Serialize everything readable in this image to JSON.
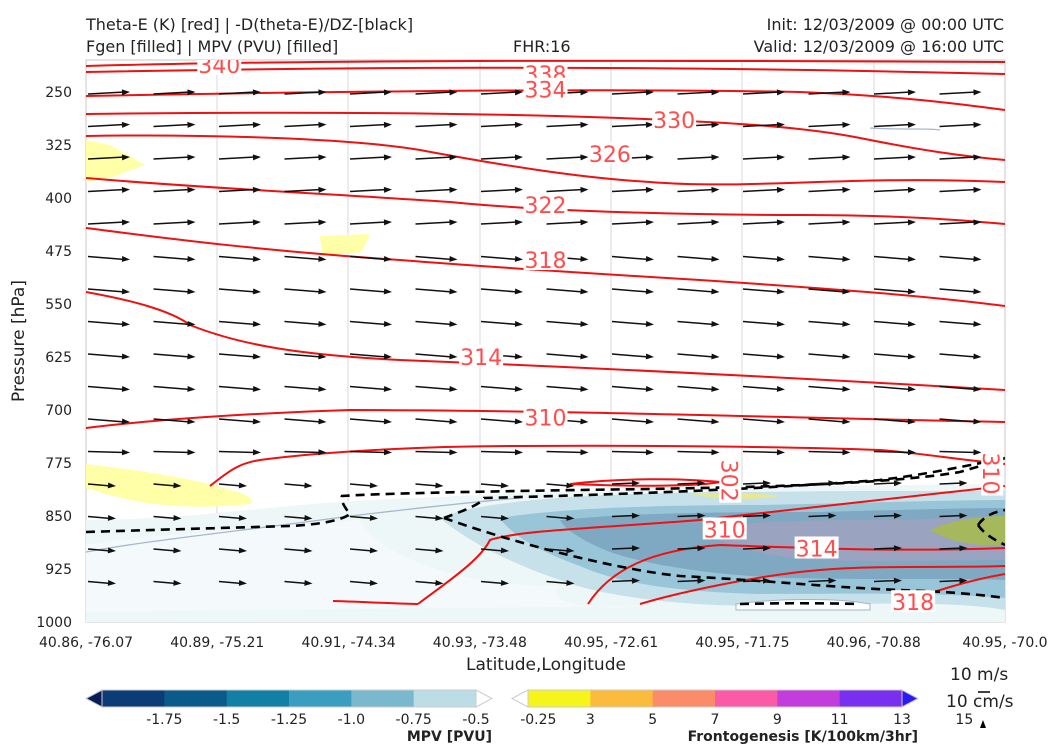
{
  "header": {
    "title_line1": "Theta-E (K) [red] | -D(theta-E)/DZ-[black]",
    "title_line2": "Fgen [filled] | MPV (PVU) [filled]",
    "fhr": "FHR:16",
    "init": "Init: 12/03/2009 @ 00:00 UTC",
    "valid": "Valid: 12/03/2009 @ 16:00 UTC"
  },
  "chart_data": {
    "type": "cross-section",
    "xlabel": "Latitude,Longitude",
    "ylabel": "Pressure [hPa]",
    "x_ticks": [
      "40.86, -76.07",
      "40.89, -75.21",
      "40.91, -74.34",
      "40.93, -73.48",
      "40.95, -72.61",
      "40.95, -71.75",
      "40.96, -70.88",
      "40.95, -70.0"
    ],
    "y_ticks": [
      250,
      325,
      400,
      475,
      550,
      625,
      700,
      775,
      850,
      925,
      1000
    ],
    "ylim": [
      1000,
      205
    ],
    "y_scale": "linear-inverted",
    "theta_e_contours": [
      {
        "level": "340",
        "label_x": 0.145,
        "label_p": 212
      },
      {
        "level": "338",
        "label_x": 0.5,
        "label_p": 225
      },
      {
        "level": "334",
        "label_x": 0.5,
        "label_p": 247
      },
      {
        "level": "330",
        "label_x": 0.64,
        "label_p": 290
      },
      {
        "level": "326",
        "label_x": 0.57,
        "label_p": 338
      },
      {
        "level": "322",
        "label_x": 0.5,
        "label_p": 410
      },
      {
        "level": "318",
        "label_x": 0.5,
        "label_p": 488
      },
      {
        "level": "314",
        "label_x": 0.43,
        "label_p": 625
      },
      {
        "level": "310",
        "label_x": 0.5,
        "label_p": 711
      },
      {
        "level": "302",
        "label_x": 0.7,
        "label_p": 800
      },
      {
        "level": "310",
        "label_x": 0.695,
        "label_p": 869
      },
      {
        "level": "314",
        "label_x": 0.795,
        "label_p": 896
      },
      {
        "level": "318",
        "label_x": 0.9,
        "label_p": 972
      },
      {
        "level": "310",
        "label_x": 0.985,
        "label_p": 790
      }
    ],
    "colorbar_mpv": {
      "label": "MPV [PVU]",
      "ticks": [
        "-1.75",
        "-1.5",
        "-1.25",
        "-1.0",
        "-0.75",
        "-0.5",
        "-0.25"
      ],
      "colors": [
        "#081d58",
        "#0c3c78",
        "#0a5a8c",
        "#127fa6",
        "#3a9ec0",
        "#7ab8d0",
        "#bcdde6",
        "#ffffff"
      ]
    },
    "colorbar_fgen": {
      "label": "Frontogenesis [K/100km/3hr]",
      "ticks": [
        "3",
        "5",
        "7",
        "9",
        "11",
        "13",
        "15"
      ],
      "colors": [
        "#ffffff",
        "#f5f51a",
        "#fbbc3d",
        "#fb8c6a",
        "#fb5aa7",
        "#c33ddc",
        "#7a2ef0",
        "#2b1af5"
      ]
    },
    "wind_key": {
      "horizontal": "10 m/s",
      "vertical": "10 cm/s"
    }
  }
}
